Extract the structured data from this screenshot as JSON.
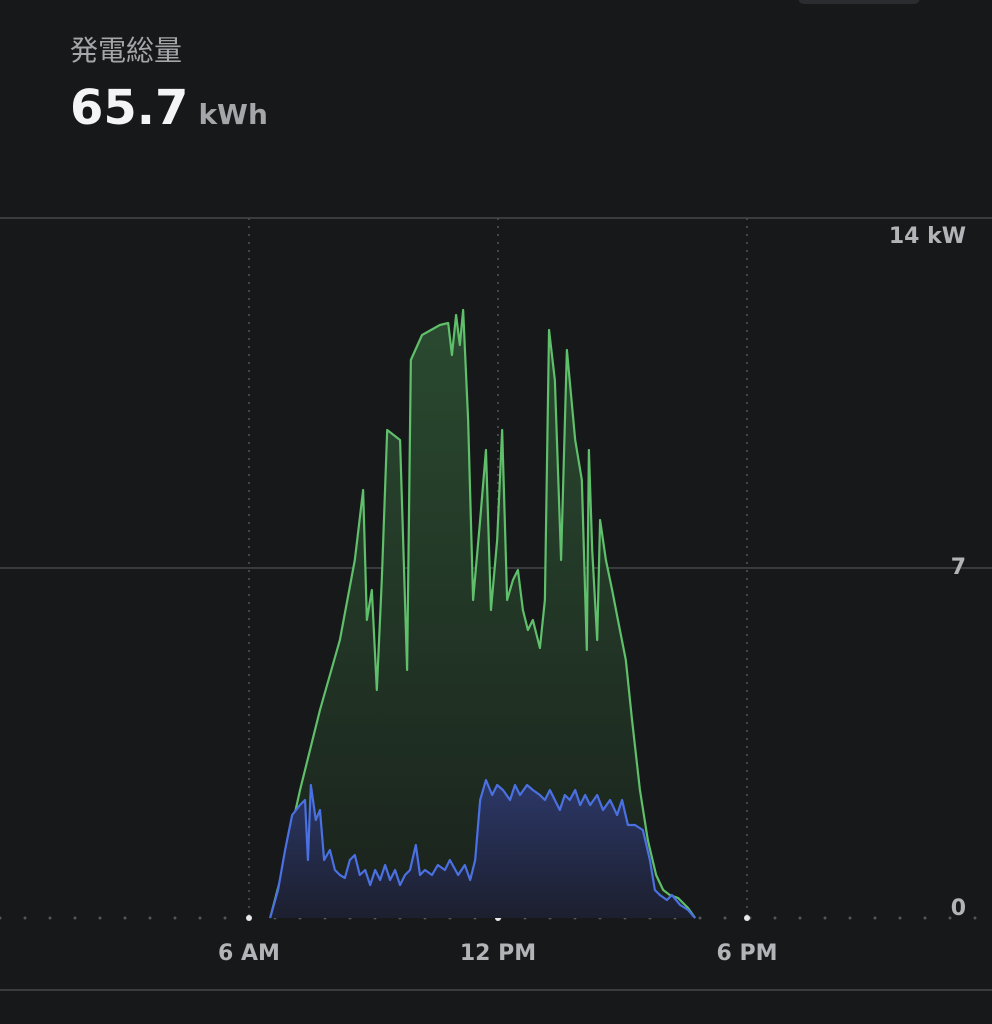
{
  "chart_data": {
    "type": "area",
    "title": "発電総量",
    "total": 65.7,
    "total_unit": "kWh",
    "xlim": [
      0,
      24
    ],
    "ylim": [
      0,
      14
    ],
    "xticks": [
      {
        "value": 6,
        "label": "6 AM"
      },
      {
        "value": 12,
        "label": "12 PM"
      },
      {
        "value": 18,
        "label": "6 PM"
      }
    ],
    "yticks": [
      0,
      7,
      {
        "value": 14,
        "label": "14 kW"
      }
    ],
    "grid": true,
    "series": [
      {
        "color": "#5fbf6a",
        "x": [
          6.51,
          6.75,
          7.23,
          7.71,
          8.19,
          8.55,
          8.75,
          8.84,
          8.96,
          9.08,
          9.2,
          9.33,
          9.64,
          9.81,
          9.9,
          10.17,
          10.6,
          10.8,
          10.89,
          10.99,
          11.08,
          11.16,
          11.28,
          11.4,
          11.57,
          11.71,
          11.83,
          11.98,
          12.1,
          12.22,
          12.36,
          12.48,
          12.6,
          12.72,
          12.84,
          13.01,
          13.13,
          13.23,
          13.37,
          13.52,
          13.66,
          13.86,
          14.02,
          14.14,
          14.19,
          14.27,
          14.39,
          14.46,
          14.6,
          14.75,
          14.89,
          15.08,
          15.23,
          15.42,
          15.61,
          15.81,
          15.98,
          16.14,
          16.34,
          16.58,
          16.75
        ],
        "values": [
          0,
          0.76,
          2.56,
          4.16,
          5.56,
          7.16,
          8.56,
          5.96,
          6.56,
          4.56,
          6.76,
          9.76,
          9.56,
          4.96,
          11.16,
          11.66,
          11.86,
          11.9,
          11.26,
          12.06,
          11.46,
          12.16,
          9.96,
          6.36,
          7.96,
          9.36,
          6.16,
          7.56,
          9.76,
          6.36,
          6.76,
          6.96,
          6.16,
          5.76,
          5.96,
          5.4,
          6.36,
          11.76,
          10.76,
          7.16,
          11.36,
          9.56,
          8.76,
          5.36,
          9.36,
          7.36,
          5.56,
          7.96,
          7.16,
          6.56,
          5.96,
          5.16,
          3.96,
          2.56,
          1.56,
          0.86,
          0.56,
          0.46,
          0.4,
          0.2,
          0
        ]
      },
      {
        "color": "#4a70e2",
        "x": [
          6.51,
          6.7,
          6.87,
          7.04,
          7.23,
          7.35,
          7.42,
          7.49,
          7.61,
          7.71,
          7.81,
          7.95,
          8.07,
          8.19,
          8.31,
          8.43,
          8.55,
          8.67,
          8.8,
          8.92,
          9.04,
          9.16,
          9.28,
          9.4,
          9.52,
          9.64,
          9.76,
          9.88,
          10.02,
          10.12,
          10.24,
          10.41,
          10.55,
          10.72,
          10.84,
          11.04,
          11.2,
          11.33,
          11.45,
          11.57,
          11.71,
          11.86,
          11.98,
          12.12,
          12.29,
          12.41,
          12.53,
          12.7,
          12.84,
          13.01,
          13.13,
          13.25,
          13.37,
          13.49,
          13.61,
          13.73,
          13.86,
          13.98,
          14.1,
          14.22,
          14.39,
          14.53,
          14.7,
          14.87,
          14.99,
          15.13,
          15.3,
          15.49,
          15.66,
          15.78,
          15.9,
          16.07,
          16.19,
          16.39,
          16.58,
          16.75
        ],
        "values": [
          0,
          0.56,
          1.36,
          2.06,
          2.26,
          2.36,
          1.16,
          2.66,
          1.96,
          2.16,
          1.16,
          1.36,
          0.96,
          0.86,
          0.8,
          1.16,
          1.26,
          0.86,
          0.96,
          0.66,
          0.96,
          0.76,
          1.06,
          0.76,
          0.96,
          0.66,
          0.86,
          0.96,
          1.46,
          0.86,
          0.96,
          0.86,
          1.06,
          0.96,
          1.16,
          0.86,
          1.06,
          0.76,
          1.16,
          2.36,
          2.76,
          2.46,
          2.66,
          2.56,
          2.36,
          2.66,
          2.46,
          2.66,
          2.56,
          2.46,
          2.36,
          2.56,
          2.36,
          2.16,
          2.46,
          2.36,
          2.56,
          2.26,
          2.46,
          2.26,
          2.46,
          2.16,
          2.36,
          2.06,
          2.36,
          1.86,
          1.86,
          1.76,
          1.16,
          0.56,
          0.46,
          0.36,
          0.46,
          0.26,
          0.16,
          0
        ]
      }
    ]
  }
}
